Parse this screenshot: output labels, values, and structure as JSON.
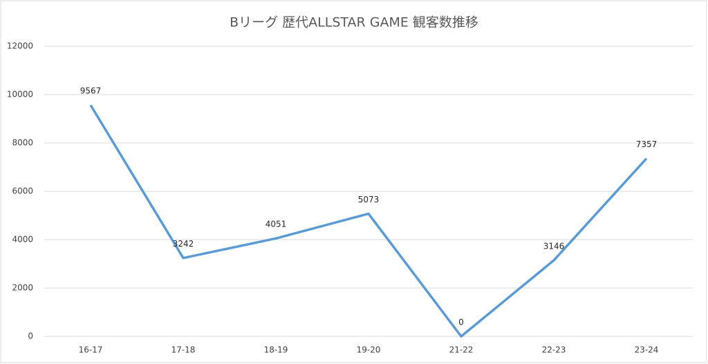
{
  "chart_data": {
    "type": "line",
    "title": "Bリーグ 歴代ALLSTAR GAME 観客数推移",
    "categories": [
      "16-17",
      "17-18",
      "18-19",
      "19-20",
      "21-22",
      "22-23",
      "23-24"
    ],
    "values": [
      9567,
      3242,
      4051,
      5073,
      0,
      3146,
      7357
    ],
    "color": "#5b9bd5",
    "ylim": [
      0,
      12000
    ],
    "yticks": [
      0,
      2000,
      4000,
      6000,
      8000,
      10000,
      12000
    ],
    "grid": true
  }
}
